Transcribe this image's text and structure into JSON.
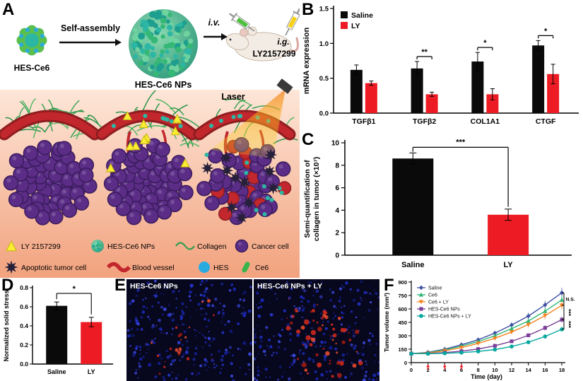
{
  "panels": {
    "A": {
      "label": "A",
      "top": {
        "molecule_label": "HES-Ce6",
        "assembly_label": "Self-assembly",
        "np_label": "HES-Ce6 NPs",
        "iv_label": "i.v.",
        "ig_label": "i.g.",
        "drug_label": "LY2157299"
      },
      "laser_label": "Laser",
      "legend": [
        {
          "icon": "ly-triangle-icon",
          "label": "LY 2157299"
        },
        {
          "icon": "np-sphere-icon",
          "label": "HES-Ce6 NPs"
        },
        {
          "icon": "collagen-icon",
          "label": "Collagen"
        },
        {
          "icon": "cancer-cell-icon",
          "label": "Cancer cell"
        },
        {
          "icon": "apoptotic-cell-icon",
          "label": "Apoptotic tumor cell"
        },
        {
          "icon": "blood-vessel-icon",
          "label": "Blood vessel"
        },
        {
          "icon": "hes-icon",
          "label": "HES"
        },
        {
          "icon": "ce6-icon",
          "label": "Ce6"
        }
      ]
    },
    "B": {
      "label": "B"
    },
    "C": {
      "label": "C"
    },
    "D": {
      "label": "D"
    },
    "E": {
      "label": "E",
      "images": [
        {
          "title": "HES-Ce6 NPs"
        },
        {
          "title": "HES-Ce6 NPs + LY"
        }
      ]
    },
    "F": {
      "label": "F"
    }
  },
  "colors": {
    "saline_bar": "#0a0a0a",
    "ly_bar": "#ed1c24",
    "schematic_pink_top": "#fde6d8",
    "schematic_pink_bottom": "#f2a27e",
    "np_teal": "#2bb7a4",
    "cancer_purple": "#5b2d87",
    "vessel_red": "#c1272d",
    "collagen_green": "#2f9e4f",
    "hes_blue": "#29abe2",
    "ce6_green": "#39b54a",
    "laser_orange": "#f58220"
  },
  "chart_data": [
    {
      "id": "B",
      "type": "bar",
      "categories": [
        "TGFβ1",
        "TGFβ2",
        "COL1A1",
        "CTGF"
      ],
      "series": [
        {
          "name": "Saline",
          "color": "#0a0a0a",
          "values": [
            0.62,
            0.64,
            0.74,
            0.97
          ],
          "errors": [
            0.07,
            0.1,
            0.13,
            0.07
          ]
        },
        {
          "name": "LY",
          "color": "#ed1c24",
          "values": [
            0.43,
            0.27,
            0.27,
            0.56
          ],
          "errors": [
            0.03,
            0.03,
            0.08,
            0.14
          ]
        }
      ],
      "ylabel": "mRNA expression",
      "ylim": [
        0,
        1.5
      ],
      "yticks": [
        0,
        0.5,
        1,
        1.5
      ],
      "legend_position": "top-left",
      "grid": false,
      "significance": [
        {
          "category": "TGFβ2",
          "label": "**"
        },
        {
          "category": "COL1A1",
          "label": "*"
        },
        {
          "category": "CTGF",
          "label": "*"
        }
      ]
    },
    {
      "id": "C",
      "type": "bar",
      "categories": [
        "Saline",
        "LY"
      ],
      "series": [
        {
          "name": "collagen",
          "values": [
            8.6,
            3.6
          ],
          "errors": [
            0.5,
            0.5
          ],
          "colors": [
            "#0a0a0a",
            "#ed1c24"
          ]
        }
      ],
      "ylabel_lines": [
        "Semi-quantification of",
        "collagen in tumor (×10⁷)"
      ],
      "ylim": [
        0,
        10
      ],
      "yticks": [
        0,
        2,
        4,
        6,
        8,
        10
      ],
      "grid": false,
      "significance": [
        {
          "between": [
            "Saline",
            "LY"
          ],
          "label": "***"
        }
      ]
    },
    {
      "id": "D",
      "type": "bar",
      "categories": [
        "Saline",
        "LY"
      ],
      "series": [
        {
          "name": "solid stress",
          "values": [
            0.61,
            0.44
          ],
          "errors": [
            0.04,
            0.05
          ],
          "colors": [
            "#0a0a0a",
            "#ed1c24"
          ]
        }
      ],
      "ylabel": "Normalized solid stress",
      "ylim": [
        0,
        0.8
      ],
      "yticks": [
        0,
        0.2,
        0.4,
        0.6,
        0.8
      ],
      "grid": false,
      "significance": [
        {
          "between": [
            "Saline",
            "LY"
          ],
          "label": "*"
        }
      ]
    },
    {
      "id": "F",
      "type": "line",
      "x": [
        0,
        2,
        4,
        6,
        8,
        10,
        12,
        14,
        16,
        18
      ],
      "series": [
        {
          "name": "Saline",
          "color": "#3f51a3",
          "marker": "diamond",
          "values": [
            100,
            115,
            150,
            200,
            255,
            330,
            420,
            520,
            645,
            780
          ]
        },
        {
          "name": "Ce6",
          "color": "#2bb673",
          "marker": "triangle",
          "values": [
            100,
            112,
            142,
            185,
            235,
            300,
            380,
            465,
            575,
            700
          ]
        },
        {
          "name": "Ce6 + LY",
          "color": "#f58220",
          "marker": "triangle-down",
          "values": [
            100,
            108,
            132,
            168,
            215,
            272,
            342,
            425,
            525,
            640
          ]
        },
        {
          "name": "HES-Ce6 NPs",
          "color": "#7b3f98",
          "marker": "square",
          "values": [
            100,
            103,
            112,
            128,
            152,
            188,
            238,
            305,
            388,
            480
          ]
        },
        {
          "name": "HES-Ce6 NPs + LY",
          "color": "#00a79d",
          "marker": "circle",
          "values": [
            100,
            100,
            104,
            112,
            125,
            146,
            180,
            228,
            292,
            372
          ]
        }
      ],
      "xlabel": "Time (day)",
      "ylabel": "Tumor volume (mm³)",
      "ylim": [
        0,
        900
      ],
      "yticks": [
        0,
        150,
        300,
        450,
        600,
        750,
        900
      ],
      "xticks": [
        0,
        2,
        4,
        6,
        8,
        10,
        12,
        14,
        16,
        18
      ],
      "legend_position": "top-left",
      "treatment_arrow_days": [
        2,
        4,
        6
      ],
      "annotations": [
        {
          "label": "N.S.",
          "span": [
            "Saline",
            "Ce6 + LY"
          ]
        },
        {
          "label": "***",
          "span": [
            "Ce6 + LY",
            "HES-Ce6 NPs"
          ]
        },
        {
          "label": "***",
          "span": [
            "HES-Ce6 NPs",
            "HES-Ce6 NPs + LY"
          ]
        }
      ]
    }
  ]
}
